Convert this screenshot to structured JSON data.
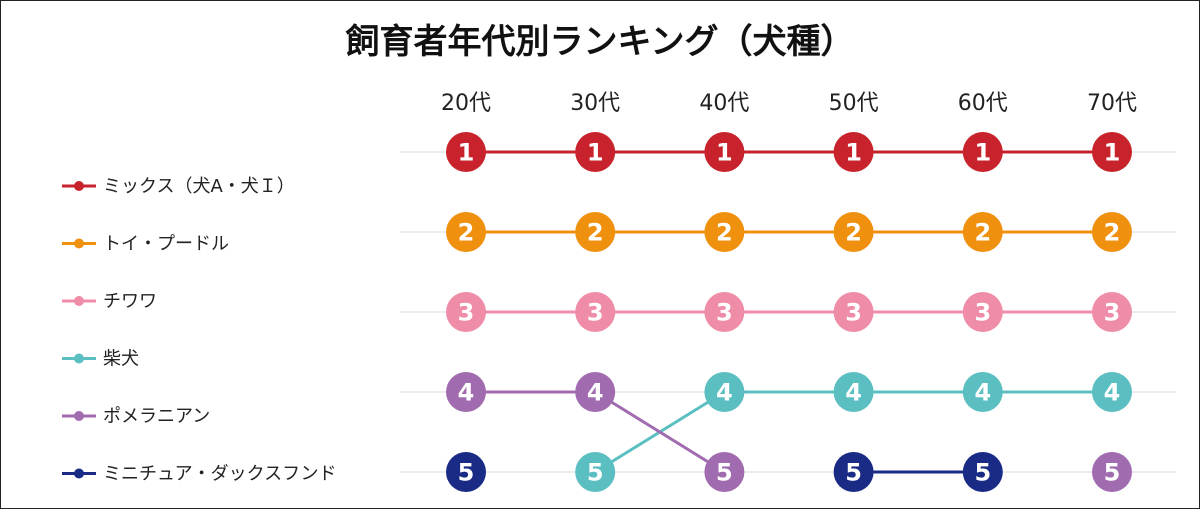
{
  "chart_data": {
    "type": "line",
    "title": "飼育者年代別ランキング（犬種）",
    "categories": [
      "20代",
      "30代",
      "40代",
      "50代",
      "60代",
      "70代"
    ],
    "y_axis": {
      "reversed": true,
      "range": [
        1,
        5
      ]
    },
    "grid": true,
    "legend_position": "left",
    "series": [
      {
        "name": "ミックス（犬A・犬Ｉ）",
        "color": "#c8232c",
        "values": [
          1,
          1,
          1,
          1,
          1,
          1
        ]
      },
      {
        "name": "トイ・プードル",
        "color": "#f0900f",
        "values": [
          2,
          2,
          2,
          2,
          2,
          2
        ]
      },
      {
        "name": "チワワ",
        "color": "#ef8ca8",
        "values": [
          3,
          3,
          3,
          3,
          3,
          3
        ]
      },
      {
        "name": "柴犬",
        "color": "#5bbfc2",
        "values": [
          null,
          5,
          4,
          4,
          4,
          4
        ]
      },
      {
        "name": "ポメラニアン",
        "color": "#a16bb0",
        "values": [
          4,
          4,
          5,
          null,
          null,
          5
        ]
      },
      {
        "name": "ミニチュア・ダックスフンド",
        "color": "#1a2b86",
        "values": [
          5,
          null,
          null,
          5,
          5,
          null
        ]
      }
    ]
  }
}
